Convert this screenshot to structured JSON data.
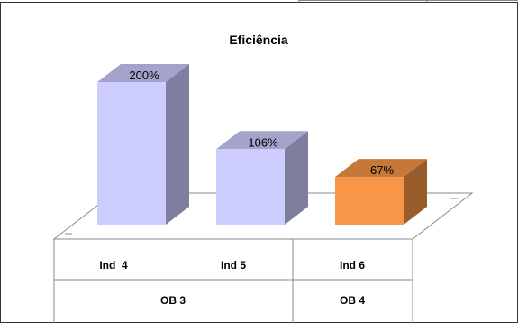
{
  "chart_data": {
    "type": "bar",
    "title": "Eficiência",
    "categories": [
      "Ind  4",
      "Ind 5",
      "Ind 6"
    ],
    "groups": [
      {
        "label": "OB 3",
        "categories": [
          "Ind  4",
          "Ind 5"
        ]
      },
      {
        "label": "OB 4",
        "categories": [
          "Ind 6"
        ]
      }
    ],
    "values": [
      200,
      106,
      67
    ],
    "value_labels": [
      "200%",
      "106%",
      "67%"
    ],
    "unit": "%",
    "colors": [
      "#ccccff",
      "#ccccff",
      "#f79646"
    ],
    "three_d": true,
    "legend": "none",
    "grid": false,
    "ylim": [
      0,
      200
    ]
  }
}
